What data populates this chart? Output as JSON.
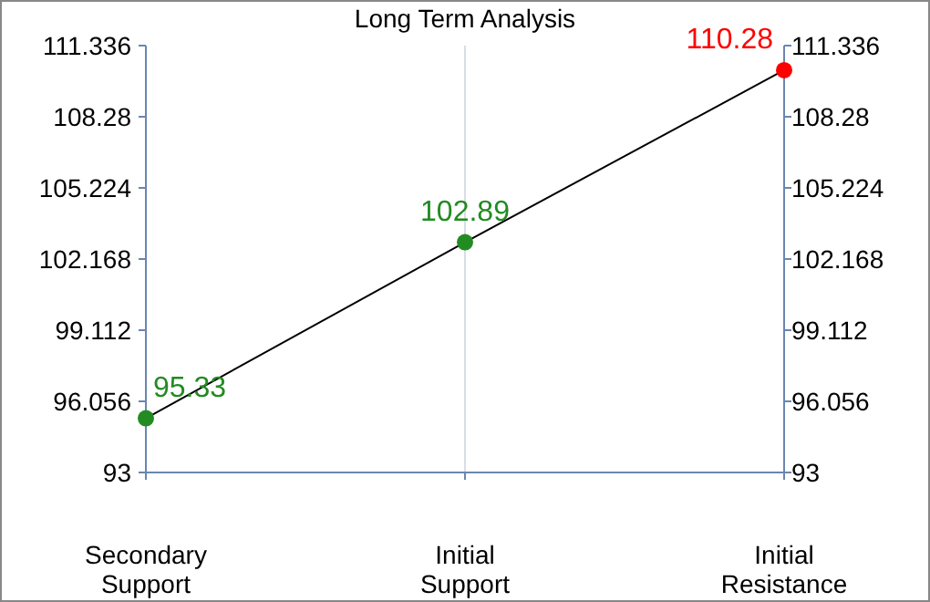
{
  "chart_data": {
    "type": "line",
    "title": "Long Term Analysis",
    "categories": [
      "Secondary\nSupport",
      "Initial\nSupport",
      "Initial\nResistance"
    ],
    "values": [
      95.33,
      102.89,
      110.28
    ],
    "color": "#000000",
    "colors": [
      "#228b22",
      "#228b22",
      "#ff0000"
    ],
    "marker": "circle",
    "data_labels": true,
    "ylim": [
      93,
      111.336
    ],
    "yticks": [
      93,
      96.056,
      99.112,
      102.168,
      105.224,
      108.28,
      111.336
    ],
    "y2lim": [
      93,
      111.336
    ],
    "y2ticks": [
      93,
      96.056,
      99.112,
      102.168,
      105.224,
      108.28,
      111.336
    ],
    "grid": "x"
  }
}
